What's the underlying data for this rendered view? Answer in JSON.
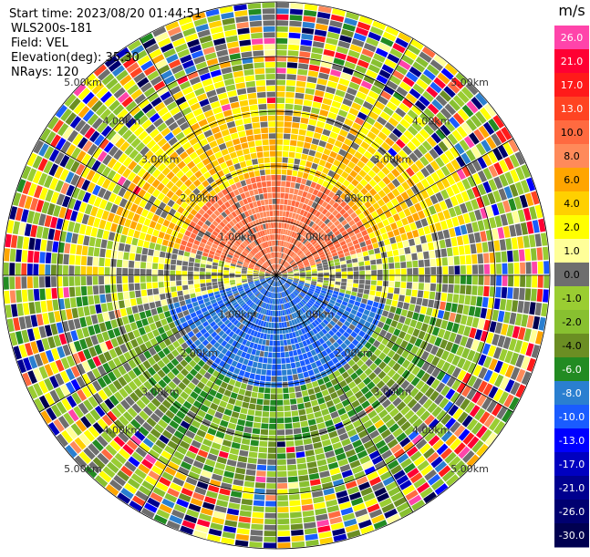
{
  "info": {
    "start_time": "Start time: 2023/08/20 01:44:51",
    "site": "WLS200s-181",
    "field": "Field: VEL",
    "elevation": "Elevation(deg): 35.30",
    "nrays": "NRays: 120"
  },
  "range_rings": [
    "1.00km",
    "2.00km",
    "3.00km",
    "4.00km",
    "5.00km"
  ],
  "colorbar": {
    "unit": "m/s",
    "labels": [
      "26.0",
      "21.0",
      "17.0",
      "13.0",
      "10.0",
      "8.0",
      "6.0",
      "4.0",
      "2.0",
      "1.0",
      "0.0",
      "-1.0",
      "-2.0",
      "-4.0",
      "-6.0",
      "-8.0",
      "-10.0",
      "-13.0",
      "-17.0",
      "-21.0",
      "-26.0",
      "-30.0"
    ],
    "colors": [
      "#ff44aa",
      "#ff0033",
      "#ff1a1a",
      "#ff4422",
      "#ff6a40",
      "#ff8a5a",
      "#ffa500",
      "#ffd000",
      "#ffff00",
      "#ffff99",
      "#6e6e6e",
      "#9acd32",
      "#88c030",
      "#6b8e23",
      "#228b22",
      "#2a7fd0",
      "#1a5cff",
      "#0000ff",
      "#0000c0",
      "#00008f",
      "#000070",
      "#000050"
    ]
  }
}
